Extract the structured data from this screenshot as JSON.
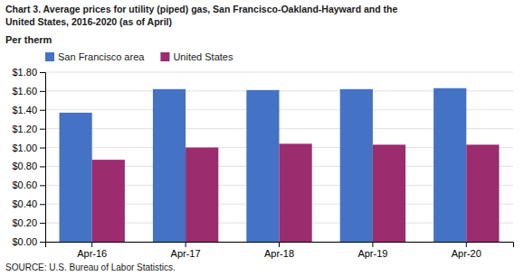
{
  "chart_data": {
    "type": "bar",
    "title": "Chart 3. Average prices for utility (piped) gas, San Francisco-Oakland-Hayward and the\nUnited States, 2016-2020  (as of April)",
    "ylabel": "Per therm",
    "source": "SOURCE: U.S. Bureau of Labor Statistics.",
    "categories": [
      "Apr-16",
      "Apr-17",
      "Apr-18",
      "Apr-19",
      "Apr-20"
    ],
    "series": [
      {
        "name": "San Francisco area",
        "color": "#4472C4",
        "values": [
          1.37,
          1.62,
          1.61,
          1.62,
          1.63
        ]
      },
      {
        "name": "United States",
        "color": "#9B2C6E",
        "values": [
          0.87,
          1.0,
          1.04,
          1.03,
          1.03
        ]
      }
    ],
    "ylim": [
      0.0,
      1.8
    ],
    "yticks": [
      {
        "value": 0.0,
        "label": "$0.00"
      },
      {
        "value": 0.2,
        "label": "$0.20"
      },
      {
        "value": 0.4,
        "label": "$0.40"
      },
      {
        "value": 0.6,
        "label": "$0.60"
      },
      {
        "value": 0.8,
        "label": "$0.80"
      },
      {
        "value": 1.0,
        "label": "$1.00"
      },
      {
        "value": 1.2,
        "label": "$1.20"
      },
      {
        "value": 1.4,
        "label": "$1.40"
      },
      {
        "value": 1.6,
        "label": "$1.60"
      },
      {
        "value": 1.8,
        "label": "$1.80"
      }
    ],
    "grid": true,
    "legend": "top-left"
  }
}
